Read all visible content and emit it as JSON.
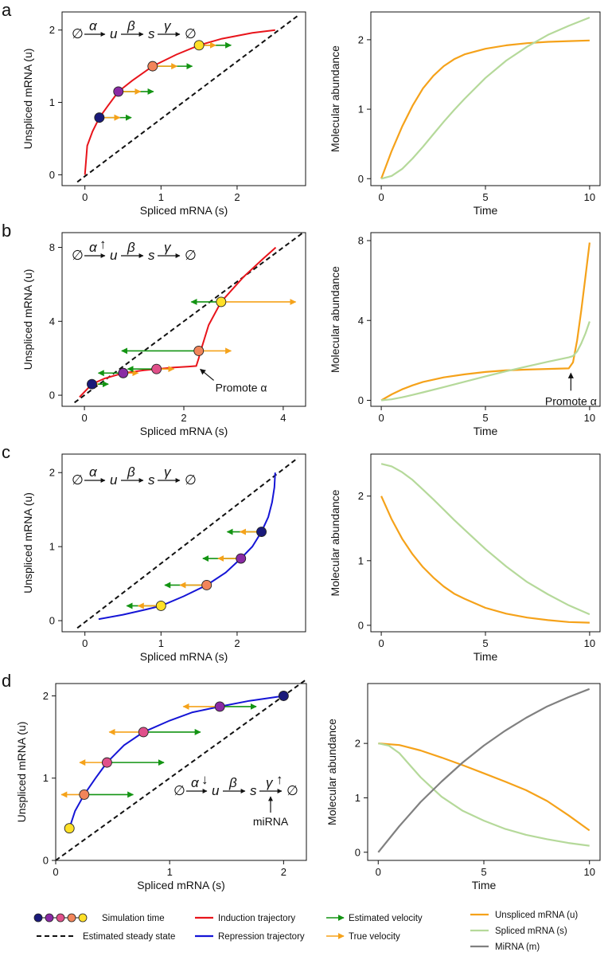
{
  "colors": {
    "induction": "#e8141b",
    "repression": "#1515d6",
    "estimated_velocity": "#139413",
    "true_velocity": "#f5a21a",
    "unspliced": "#f5a21a",
    "spliced": "#b5d99a",
    "mirna": "#808080",
    "dot_colors": [
      "#1a1a7a",
      "#8a2aa4",
      "#e0508a",
      "#f2855a",
      "#ffe028"
    ]
  },
  "legend": {
    "simulation_time": "Simulation time",
    "steady_state": "Estimated steady state",
    "induction": "Induction trajectory",
    "repression": "Repression trajectory",
    "estimated_velocity": "Estimated velocity",
    "true_velocity": "True velocity",
    "unspliced": "Unspliced mRNA (u)",
    "spliced": "Spliced mRNA (s)",
    "mirna": "MiRNA (m)"
  },
  "chart_data": [
    {
      "panel": "a",
      "side": "phase",
      "type": "scatter",
      "xlabel": "Spliced mRNA (s)",
      "ylabel": "Unspliced mRNA (u)",
      "xlim": [
        -0.3,
        2.9
      ],
      "ylim": [
        -0.15,
        2.25
      ],
      "xticks": [
        0,
        1,
        2
      ],
      "yticks": [
        0,
        1,
        2
      ],
      "scheme": {
        "left": "∅",
        "alpha": "α",
        "u": "u",
        "beta": "β",
        "s": "s",
        "gamma": "γ",
        "right": "∅",
        "alpha_mod": "",
        "gamma_mod": "",
        "gamma_note": ""
      },
      "trajectory": {
        "kind": "induction",
        "x": [
          0,
          0.03,
          0.1,
          0.19,
          0.3,
          0.44,
          0.62,
          0.89,
          1.2,
          1.5,
          1.8,
          2.2,
          2.5
        ],
        "y": [
          0,
          0.4,
          0.6,
          0.79,
          0.95,
          1.15,
          1.3,
          1.5,
          1.66,
          1.79,
          1.88,
          1.96,
          2.0
        ]
      },
      "steady_state": {
        "x": [
          -0.1,
          2.8
        ],
        "y": [
          -0.1,
          2.2
        ]
      },
      "points": [
        {
          "x": 0.19,
          "y": 0.79,
          "est_dx": 0.42,
          "true_dx": 0.27
        },
        {
          "x": 0.44,
          "y": 1.15,
          "est_dx": 0.46,
          "true_dx": 0.29
        },
        {
          "x": 0.89,
          "y": 1.5,
          "est_dx": 0.52,
          "true_dx": 0.32
        },
        {
          "x": 1.5,
          "y": 1.79,
          "est_dx": 0.42,
          "true_dx": 0.22
        }
      ],
      "annotation": ""
    },
    {
      "panel": "a",
      "side": "time",
      "type": "line",
      "xlabel": "Time",
      "ylabel": "Molecular abundance",
      "xlim": [
        -0.5,
        10.5
      ],
      "ylim": [
        -0.1,
        2.4
      ],
      "xticks": [
        0,
        5,
        10
      ],
      "yticks": [
        0,
        1,
        2
      ],
      "series": [
        {
          "name": "Unspliced mRNA (u)",
          "key": "unspliced",
          "x": [
            0,
            0.5,
            1,
            1.5,
            2,
            2.5,
            3,
            3.5,
            4,
            5,
            6,
            7,
            8,
            9,
            10
          ],
          "y": [
            0,
            0.4,
            0.75,
            1.05,
            1.3,
            1.48,
            1.62,
            1.72,
            1.79,
            1.87,
            1.92,
            1.95,
            1.97,
            1.98,
            1.99
          ]
        },
        {
          "name": "Spliced mRNA (s)",
          "key": "spliced",
          "x": [
            0,
            0.5,
            1,
            1.5,
            2,
            2.5,
            3,
            3.5,
            4,
            5,
            6,
            7,
            8,
            9,
            10
          ],
          "y": [
            0,
            0.04,
            0.14,
            0.29,
            0.46,
            0.64,
            0.82,
            0.99,
            1.15,
            1.45,
            1.7,
            1.9,
            2.07,
            2.2,
            2.32
          ]
        }
      ],
      "annotation": ""
    },
    {
      "panel": "b",
      "side": "phase",
      "type": "scatter",
      "xlabel": "Spliced mRNA (s)",
      "ylabel": "Unspliced mRNA (u)",
      "xlim": [
        -0.45,
        4.45
      ],
      "ylim": [
        -0.6,
        8.8
      ],
      "xticks": [
        0,
        2,
        4
      ],
      "yticks": [
        0,
        4,
        8
      ],
      "scheme": {
        "left": "∅",
        "alpha": "α",
        "u": "u",
        "beta": "β",
        "s": "s",
        "gamma": "γ",
        "right": "∅",
        "alpha_mod": "↑",
        "gamma_mod": "",
        "gamma_note": ""
      },
      "trajectory": {
        "kind": "induction",
        "x": [
          -0.1,
          0.15,
          0.4,
          0.78,
          1.2,
          1.45,
          1.8,
          2.1,
          2.25,
          2.3,
          2.34,
          2.5,
          2.75,
          3.2,
          3.6,
          3.85
        ],
        "y": [
          -0.1,
          0.6,
          0.9,
          1.2,
          1.35,
          1.42,
          1.5,
          1.55,
          1.58,
          2.0,
          2.4,
          3.8,
          5.05,
          6.4,
          7.4,
          8.0
        ]
      },
      "steady_state": {
        "x": [
          -0.2,
          4.4
        ],
        "y": [
          -0.4,
          8.8
        ]
      },
      "points": [
        {
          "x": 0.15,
          "y": 0.6,
          "est_dx": 0.33,
          "true_dx": 0.12
        },
        {
          "x": 0.78,
          "y": 1.2,
          "est_dx": -0.5,
          "true_dx": 0.3
        },
        {
          "x": 1.45,
          "y": 1.42,
          "est_dx": -0.58,
          "true_dx": 0.35
        },
        {
          "x": 2.3,
          "y": 2.4,
          "est_dx": -1.55,
          "true_dx": 0.65
        },
        {
          "x": 2.75,
          "y": 5.05,
          "est_dx": -0.6,
          "true_dx": 1.5
        }
      ],
      "annotation": {
        "text": "Promote α",
        "x": 2.25,
        "y": 1.58
      }
    },
    {
      "panel": "b",
      "side": "time",
      "type": "line",
      "xlabel": "Time",
      "ylabel": "Molecular abundance",
      "xlim": [
        -0.5,
        10.5
      ],
      "ylim": [
        -0.3,
        8.4
      ],
      "xticks": [
        0,
        5,
        10
      ],
      "yticks": [
        0,
        4,
        8
      ],
      "series": [
        {
          "name": "Unspliced mRNA (u)",
          "key": "unspliced",
          "x": [
            0,
            0.5,
            1,
            1.5,
            2,
            3,
            4,
            5,
            6,
            7,
            8,
            9,
            9.2,
            9.4,
            9.6,
            9.8,
            10
          ],
          "y": [
            0,
            0.3,
            0.55,
            0.75,
            0.92,
            1.15,
            1.3,
            1.42,
            1.5,
            1.54,
            1.57,
            1.6,
            1.9,
            3.0,
            4.5,
            6.2,
            7.9
          ]
        },
        {
          "name": "Spliced mRNA (s)",
          "key": "spliced",
          "x": [
            0,
            0.5,
            1,
            1.5,
            2,
            3,
            4,
            5,
            6,
            7,
            8,
            9,
            9.2,
            9.4,
            9.6,
            9.8,
            10
          ],
          "y": [
            0,
            0.05,
            0.15,
            0.27,
            0.4,
            0.66,
            0.93,
            1.2,
            1.46,
            1.7,
            1.93,
            2.15,
            2.22,
            2.45,
            2.85,
            3.35,
            3.95
          ]
        }
      ],
      "annotation": {
        "text": "Promote α",
        "x": 9.1,
        "y": 1.6
      }
    },
    {
      "panel": "c",
      "side": "phase",
      "type": "scatter",
      "xlabel": "Spliced mRNA (s)",
      "ylabel": "Unspliced mRNA (u)",
      "xlim": [
        -0.3,
        2.9
      ],
      "ylim": [
        -0.15,
        2.25
      ],
      "xticks": [
        0,
        1,
        2
      ],
      "yticks": [
        0,
        1,
        2
      ],
      "scheme": {
        "left": "∅",
        "alpha": "α",
        "u": "u",
        "beta": "β",
        "s": "s",
        "gamma": "γ",
        "right": "∅",
        "alpha_mod": "",
        "gamma_mod": "",
        "gamma_note": ""
      },
      "trajectory": {
        "kind": "repression",
        "x": [
          0.18,
          0.5,
          0.8,
          1.0,
          1.3,
          1.6,
          1.85,
          2.05,
          2.2,
          2.32,
          2.41,
          2.46,
          2.49,
          2.5
        ],
        "y": [
          0.02,
          0.08,
          0.15,
          0.2,
          0.33,
          0.48,
          0.65,
          0.84,
          1.0,
          1.2,
          1.4,
          1.6,
          1.8,
          2.0
        ]
      },
      "steady_state": {
        "x": [
          -0.1,
          2.8
        ],
        "y": [
          -0.1,
          2.2
        ]
      },
      "points": [
        {
          "x": 1.0,
          "y": 0.2,
          "est_dx": -0.45,
          "true_dx": -0.3
        },
        {
          "x": 1.6,
          "y": 0.48,
          "est_dx": -0.55,
          "true_dx": -0.35
        },
        {
          "x": 2.05,
          "y": 0.84,
          "est_dx": -0.5,
          "true_dx": -0.3
        },
        {
          "x": 2.32,
          "y": 1.2,
          "est_dx": -0.45,
          "true_dx": -0.28
        }
      ],
      "annotation": ""
    },
    {
      "panel": "c",
      "side": "time",
      "type": "line",
      "xlabel": "Time",
      "ylabel": "Molecular abundance",
      "xlim": [
        -0.5,
        10.5
      ],
      "ylim": [
        -0.1,
        2.65
      ],
      "xticks": [
        0,
        5,
        10
      ],
      "yticks": [
        0,
        1,
        2
      ],
      "series": [
        {
          "name": "Unspliced mRNA (u)",
          "key": "unspliced",
          "x": [
            0,
            0.5,
            1,
            1.5,
            2,
            2.5,
            3,
            3.5,
            4,
            5,
            6,
            7,
            8,
            9,
            10
          ],
          "y": [
            2.0,
            1.64,
            1.34,
            1.1,
            0.9,
            0.74,
            0.6,
            0.49,
            0.41,
            0.27,
            0.18,
            0.12,
            0.08,
            0.05,
            0.04
          ]
        },
        {
          "name": "Spliced mRNA (s)",
          "key": "spliced",
          "x": [
            0,
            0.5,
            1,
            1.5,
            2,
            2.5,
            3,
            3.5,
            4,
            5,
            6,
            7,
            8,
            9,
            10
          ],
          "y": [
            2.5,
            2.46,
            2.37,
            2.25,
            2.1,
            1.95,
            1.79,
            1.63,
            1.48,
            1.18,
            0.91,
            0.67,
            0.48,
            0.31,
            0.17
          ]
        }
      ],
      "annotation": ""
    },
    {
      "panel": "d",
      "side": "phase",
      "type": "scatter",
      "xlabel": "Spliced mRNA (s)",
      "ylabel": "Unspliced mRNA (u)",
      "xlim": [
        0,
        2.2
      ],
      "ylim": [
        0,
        2.15
      ],
      "xticks": [
        0,
        1,
        2
      ],
      "yticks": [
        0,
        1,
        2
      ],
      "scheme": {
        "left": "∅",
        "alpha": "α",
        "u": "u",
        "beta": "β",
        "s": "s",
        "gamma": "γ",
        "right": "∅",
        "alpha_mod": "↓",
        "gamma_mod": "↑",
        "gamma_note": "miRNA"
      },
      "trajectory": {
        "kind": "repression",
        "x": [
          0.12,
          0.17,
          0.25,
          0.35,
          0.45,
          0.6,
          0.77,
          1.0,
          1.2,
          1.44,
          1.7,
          1.9,
          2.0
        ],
        "y": [
          0.39,
          0.6,
          0.8,
          1.0,
          1.19,
          1.4,
          1.56,
          1.7,
          1.8,
          1.87,
          1.94,
          1.98,
          2.0
        ]
      },
      "steady_state": {
        "x": [
          0,
          2.2
        ],
        "y": [
          0,
          2.2
        ]
      },
      "points": [
        {
          "x": 0.12,
          "y": 0.39,
          "est_dx": 0,
          "true_dx": 0
        },
        {
          "x": 0.25,
          "y": 0.8,
          "est_dx": 0.43,
          "true_dx": -0.2
        },
        {
          "x": 0.45,
          "y": 1.19,
          "est_dx": 0.5,
          "true_dx": -0.24
        },
        {
          "x": 0.77,
          "y": 1.56,
          "est_dx": 0.5,
          "true_dx": -0.3
        },
        {
          "x": 1.44,
          "y": 1.87,
          "est_dx": 0.32,
          "true_dx": -0.32
        },
        {
          "x": 2.0,
          "y": 2.0,
          "est_dx": 0,
          "true_dx": 0
        }
      ],
      "annotation": ""
    },
    {
      "panel": "d",
      "side": "time",
      "type": "line",
      "xlabel": "Time",
      "ylabel": "Molecular abundance",
      "xlim": [
        -0.5,
        10.5
      ],
      "ylim": [
        -0.15,
        3.1
      ],
      "xticks": [
        0,
        5,
        10
      ],
      "yticks": [
        0,
        1,
        2
      ],
      "series": [
        {
          "name": "Unspliced mRNA (u)",
          "key": "unspliced",
          "x": [
            0,
            1,
            2,
            3,
            4,
            5,
            6,
            7,
            8,
            9,
            10
          ],
          "y": [
            2.0,
            1.97,
            1.87,
            1.74,
            1.6,
            1.45,
            1.3,
            1.14,
            0.94,
            0.68,
            0.4
          ]
        },
        {
          "name": "Spliced mRNA (s)",
          "key": "spliced",
          "x": [
            0,
            0.5,
            1,
            1.5,
            2,
            2.5,
            3,
            4,
            5,
            6,
            7,
            8,
            9,
            10
          ],
          "y": [
            2.0,
            1.96,
            1.82,
            1.6,
            1.38,
            1.2,
            1.02,
            0.76,
            0.58,
            0.43,
            0.32,
            0.24,
            0.17,
            0.12
          ]
        },
        {
          "name": "MiRNA (m)",
          "key": "mirna",
          "x": [
            0,
            1,
            2,
            3,
            4,
            5,
            6,
            7,
            8,
            9,
            10
          ],
          "y": [
            0,
            0.48,
            0.92,
            1.3,
            1.65,
            1.96,
            2.23,
            2.47,
            2.68,
            2.85,
            3.0
          ]
        }
      ],
      "annotation": ""
    }
  ],
  "panels": [
    {
      "letter": "a"
    },
    {
      "letter": "b"
    },
    {
      "letter": "c"
    },
    {
      "letter": "d"
    }
  ]
}
